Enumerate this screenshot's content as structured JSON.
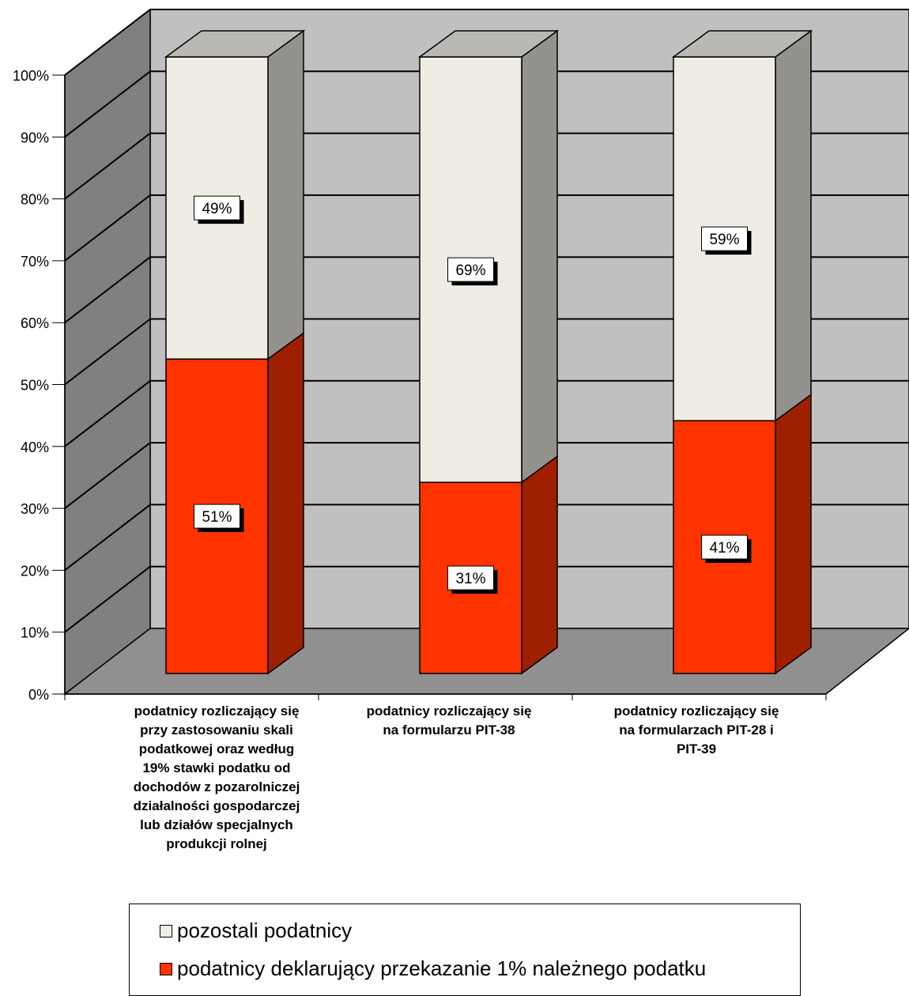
{
  "chart_data": {
    "type": "bar",
    "stacked": true,
    "percent_stacked": true,
    "three_d": true,
    "categories": [
      "podatnicy rozliczający się\nprzy zastosowaniu skali\npodatkowej oraz według\n19% stawki podatku od\ndochodów z pozarolniczej\ndziałalności gospodarczej\nlub działów specjalnych\nprodukcji rolnej",
      "podatnicy rozliczający  się\nna formularzu PIT-38",
      "podatnicy rozliczający się\nna formularzach PIT-28 i\nPIT-39"
    ],
    "series": [
      {
        "name": "podatnicy deklarujący przekazanie 1% należnego podatku",
        "values": [
          51,
          31,
          41
        ],
        "labels": [
          "51%",
          "31%",
          "41%"
        ],
        "color": "#ff3300"
      },
      {
        "name": "pozostali podatnicy",
        "values": [
          49,
          69,
          59
        ],
        "labels": [
          "49%",
          "69%",
          "59%"
        ],
        "color": "#efece4"
      }
    ],
    "ylim": [
      0,
      100
    ],
    "yticks": [
      "0%",
      "10%",
      "20%",
      "30%",
      "40%",
      "50%",
      "60%",
      "70%",
      "80%",
      "90%",
      "100%"
    ],
    "grid": true,
    "legend_position": "bottom",
    "legend_order": [
      "pozostali podatnicy",
      "podatnicy deklarujący przekazanie 1% należnego podatku"
    ],
    "wall_color": "#c0c0c0",
    "side_wall_color": "#808080",
    "floor_color": "#909090"
  }
}
